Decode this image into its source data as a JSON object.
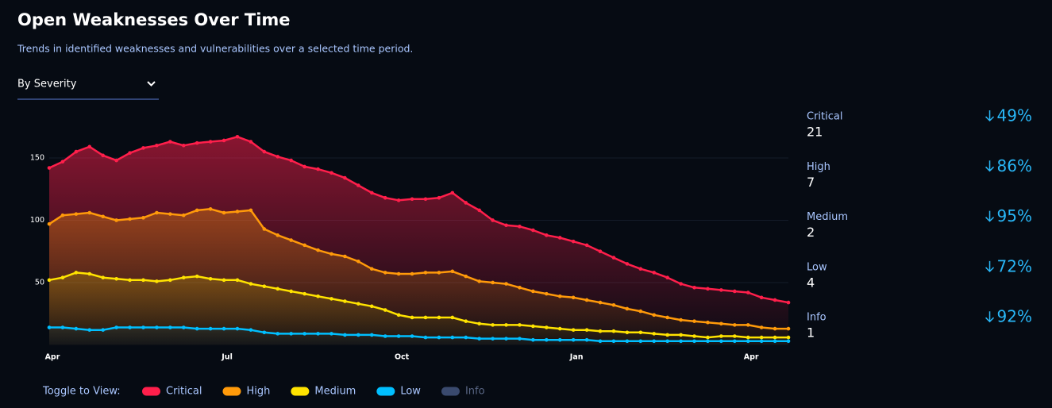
{
  "header": {
    "title": "Open Weaknesses Over Time",
    "subtitle": "Trends in identified weaknesses and vulnerabilities over a selected time period.",
    "dropdown": "By Severity"
  },
  "chart_data": {
    "type": "area-line",
    "categories": [
      "Apr",
      null,
      null,
      null,
      null,
      null,
      null,
      null,
      null,
      null,
      null,
      null,
      null,
      "Jul",
      null,
      null,
      null,
      null,
      null,
      null,
      null,
      null,
      null,
      null,
      null,
      null,
      "Oct",
      null,
      null,
      null,
      null,
      null,
      null,
      null,
      null,
      null,
      null,
      null,
      null,
      "Jan",
      null,
      null,
      null,
      null,
      null,
      null,
      null,
      null,
      null,
      null,
      null,
      null,
      "Apr",
      null,
      null,
      null
    ],
    "ylim": [
      0,
      175
    ],
    "yticks": [
      50,
      100,
      150
    ],
    "grid": true,
    "series": [
      {
        "name": "Critical",
        "color": "#ff1f4b",
        "values": [
          142,
          147,
          155,
          159,
          152,
          148,
          154,
          158,
          160,
          163,
          160,
          162,
          163,
          164,
          167,
          163,
          155,
          151,
          148,
          143,
          141,
          138,
          134,
          128,
          122,
          118,
          116,
          117,
          117,
          118,
          122,
          114,
          108,
          100,
          96,
          95,
          92,
          88,
          86,
          83,
          80,
          75,
          70,
          65,
          61,
          58,
          54,
          49,
          46,
          45,
          44,
          43,
          42,
          38,
          36,
          34
        ]
      },
      {
        "name": "High",
        "color": "#ff9a0a",
        "values": [
          97,
          104,
          105,
          106,
          103,
          100,
          101,
          102,
          106,
          105,
          104,
          108,
          109,
          106,
          107,
          108,
          93,
          88,
          84,
          80,
          76,
          73,
          71,
          67,
          61,
          58,
          57,
          57,
          58,
          58,
          59,
          55,
          51,
          50,
          49,
          46,
          43,
          41,
          39,
          38,
          36,
          34,
          32,
          29,
          27,
          24,
          22,
          20,
          19,
          18,
          17,
          16,
          16,
          14,
          13,
          13
        ]
      },
      {
        "name": "Medium",
        "color": "#ffe300",
        "values": [
          52,
          54,
          58,
          57,
          54,
          53,
          52,
          52,
          51,
          52,
          54,
          55,
          53,
          52,
          52,
          49,
          47,
          45,
          43,
          41,
          39,
          37,
          35,
          33,
          31,
          28,
          24,
          22,
          22,
          22,
          22,
          19,
          17,
          16,
          16,
          16,
          15,
          14,
          13,
          12,
          12,
          11,
          11,
          10,
          10,
          9,
          8,
          8,
          7,
          6,
          7,
          7,
          6,
          6,
          6,
          6
        ]
      },
      {
        "name": "Low",
        "color": "#00bfff",
        "values": [
          14,
          14,
          13,
          12,
          12,
          14,
          14,
          14,
          14,
          14,
          14,
          13,
          13,
          13,
          13,
          12,
          10,
          9,
          9,
          9,
          9,
          9,
          8,
          8,
          8,
          7,
          7,
          7,
          6,
          6,
          6,
          6,
          5,
          5,
          5,
          5,
          4,
          4,
          4,
          4,
          4,
          3,
          3,
          3,
          3,
          3,
          3,
          3,
          3,
          3,
          3,
          3,
          3,
          3,
          3,
          3
        ]
      }
    ],
    "hidden_series": [
      {
        "name": "Info",
        "color": "#3a4a6e"
      }
    ],
    "legend_title": "Toggle to View:"
  },
  "summary": [
    {
      "label": "Critical",
      "count": 21,
      "change": "49%"
    },
    {
      "label": "High",
      "count": 7,
      "change": "86%"
    },
    {
      "label": "Medium",
      "count": 2,
      "change": "95%"
    },
    {
      "label": "Low",
      "count": 4,
      "change": "72%"
    },
    {
      "label": "Info",
      "count": 1,
      "change": "92%"
    }
  ]
}
